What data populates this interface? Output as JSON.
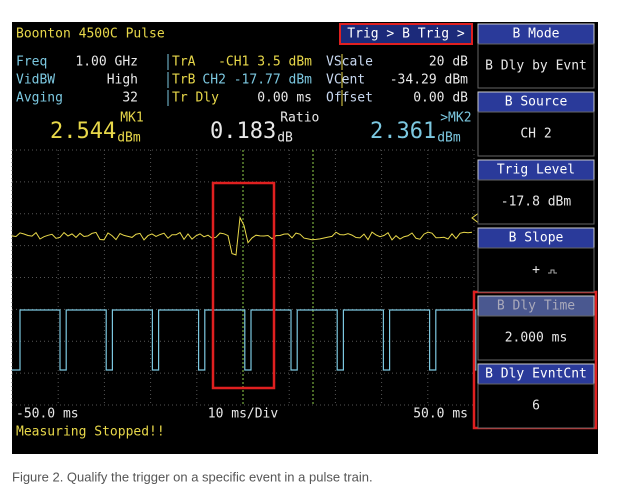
{
  "header": {
    "title": "Boonton 4500C Pulse",
    "trigger_menu": "Trig > B Trig >"
  },
  "readouts": [
    {
      "rows": [
        {
          "label": "Freq",
          "value": "1.00 GHz"
        },
        {
          "label": "VidBW",
          "value": "High"
        },
        {
          "label": "Avging",
          "value": "32"
        }
      ]
    },
    {
      "rows": [
        {
          "label": "TrA",
          "value": "-CH1 3.5 dBm"
        },
        {
          "label": "TrB",
          "value": "CH2 -17.77 dBm"
        },
        {
          "label": "Tr Dly",
          "value": "0.00 ms"
        }
      ]
    },
    {
      "rows": [
        {
          "label": "VScale",
          "value": "20 dB"
        },
        {
          "label": "VCent",
          "value": "-34.29 dBm"
        },
        {
          "label": "Offset",
          "value": "0.00 dB"
        }
      ]
    }
  ],
  "markers": [
    {
      "label": "MK1",
      "value": "2.544",
      "unit": "dBm"
    },
    {
      "label": "Ratio",
      "value": "0.183",
      "unit": "dB"
    },
    {
      "label": ">MK2",
      "value": "2.361",
      "unit": "dBm"
    }
  ],
  "time_axis": {
    "start": "-50.0 ms",
    "scale": "10 ms/Div",
    "end": "50.0 ms"
  },
  "status": "Measuring Stopped!!",
  "menu": [
    {
      "title": "B Mode",
      "value": "B Dly by Evnt"
    },
    {
      "title": "B Source",
      "value": "CH 2"
    },
    {
      "title": "Trig Level",
      "value": "-17.8 dBm"
    },
    {
      "title": "B Slope",
      "value": "+"
    },
    {
      "title": "B Dly Time",
      "value": "2.000 ms"
    },
    {
      "title": "B Dly EvntCnt",
      "value": "6"
    }
  ],
  "caption": "Figure 2. Qualify the trigger on a specific event in a pulse train."
}
